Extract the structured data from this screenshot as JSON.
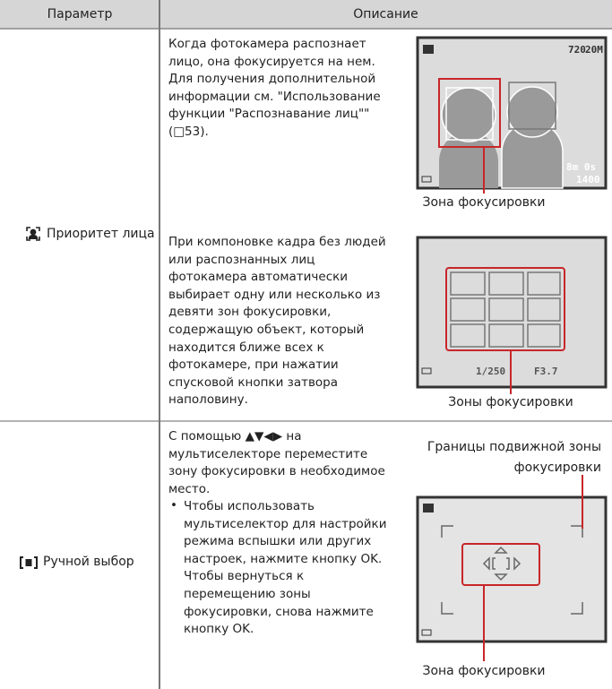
{
  "header": {
    "param": "Параметр",
    "desc": "Описание"
  },
  "rows": [
    {
      "label": "Приоритет лица",
      "blocks": [
        {
          "lines": [
            "Когда фотокамера распознает",
            "лицо, она фокусируется на нем.",
            "Для получения дополнительной",
            "информации см. \"Использование",
            "функции \"Распознавание лиц\"\"",
            "(□53)."
          ],
          "screen": [
            "720",
            "20M",
            "8m 0s",
            "1400"
          ],
          "caption": "Зона фокусировки"
        },
        {
          "lines": [
            "При компоновке кадра без людей",
            "или распознанных лиц",
            "фотокамера автоматически",
            "выбирает одну или несколько из",
            "девяти зон фокусировки,",
            "содержащую объект, который",
            "находится ближе всех к",
            "фотокамере, при нажатии",
            "спусковой кнопки затвора",
            "наполовину."
          ],
          "screen": [
            "1/250",
            "F3.7"
          ],
          "caption": "Зоны фокусировки"
        }
      ]
    },
    {
      "label": "Ручной выбор",
      "lines": [
        "С помощью ▲▼◀▶ на",
        "мультиселекторе переместите",
        "зону фокусировки в необходимое",
        "место."
      ],
      "bullet": "•",
      "bullet_lines": [
        "Чтобы использовать",
        "мультиселектор для настройки",
        "режима вспышки или других",
        "настроек, нажмите кнопку OK.",
        "Чтобы вернуться к",
        "перемещению зоны",
        "фокусировки, снова нажмите",
        "кнопку OK."
      ],
      "caption_top": [
        "Границы подвижной зоны",
        "фокусировки"
      ],
      "caption": "Зона фокусировки"
    }
  ]
}
